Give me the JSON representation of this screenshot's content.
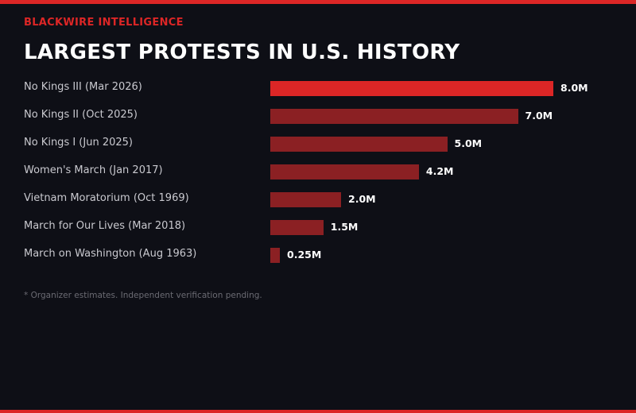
{
  "colors": {
    "accent": "#dc2626",
    "bar": "#8b2023",
    "background": "#0e0f16"
  },
  "header": {
    "brand": "BLACKWIRE INTELLIGENCE",
    "title": "LARGEST PROTESTS IN U.S. HISTORY"
  },
  "chart_data": {
    "type": "bar",
    "orientation": "horizontal",
    "title": "LARGEST PROTESTS IN U.S. HISTORY",
    "unit": "M",
    "categories": [
      "No Kings III (Mar 2026)",
      "No Kings II (Oct 2025)",
      "No Kings I (Jun 2025)",
      "Women's March (Jan 2017)",
      "Vietnam Moratorium (Oct 1969)",
      "March for Our Lives (Mar 2018)",
      "March on Washington (Aug 1963)"
    ],
    "values": [
      8.0,
      7.0,
      5.0,
      4.2,
      2.0,
      1.5,
      0.25
    ],
    "data_labels": [
      "8.0M",
      "7.0M",
      "5.0M",
      "4.2M",
      "2.0M",
      "1.5M",
      "0.25M"
    ],
    "highlight_index": 0,
    "xlim": [
      0,
      8.0
    ],
    "grid": false
  },
  "footnote": "* Organizer estimates. Independent verification pending."
}
